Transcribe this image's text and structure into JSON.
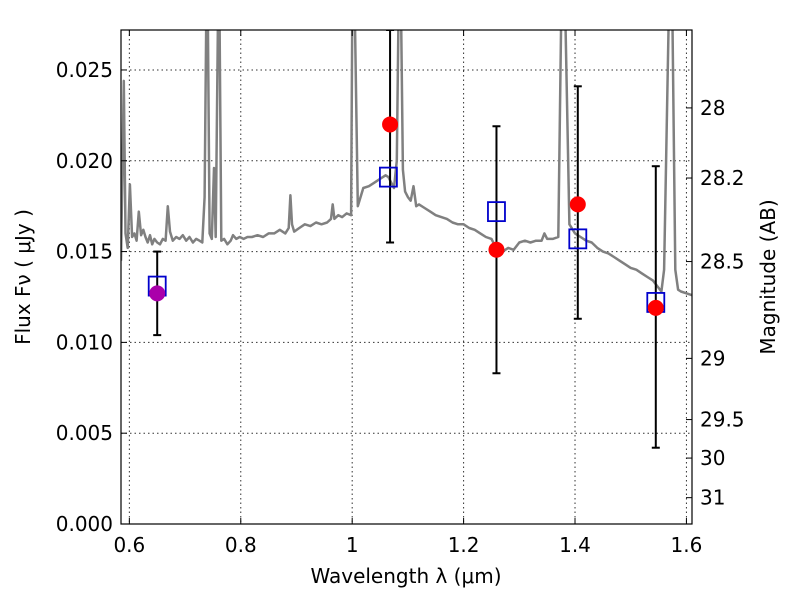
{
  "chart_data": {
    "type": "scatter",
    "title": "",
    "xlabel": "Wavelength  λ (μm)",
    "ylabel": "Flux  Fν  ( μJy )",
    "y2label": "Magnitude (AB)",
    "xlim": [
      0.585,
      1.61
    ],
    "ylim": [
      0.0,
      0.0272
    ],
    "grid": true,
    "x_ticks": [
      0.6,
      0.8,
      1.0,
      1.2,
      1.4,
      1.6
    ],
    "x_tick_labels": [
      "0.6",
      "0.8",
      "1",
      "1.2",
      "1.4",
      "1.6"
    ],
    "y_ticks": [
      0.0,
      0.005,
      0.01,
      0.015,
      0.02,
      0.025
    ],
    "y_tick_labels": [
      "0.000",
      "0.005",
      "0.010",
      "0.015",
      "0.020",
      "0.025"
    ],
    "mag_ticks": [
      {
        "label": "28",
        "flux": 0.02291
      },
      {
        "label": "28.2",
        "flux": 0.01905
      },
      {
        "label": "28.5",
        "flux": 0.01445
      },
      {
        "label": "29",
        "flux": 0.00912
      },
      {
        "label": "29.5",
        "flux": 0.00575
      },
      {
        "label": "30",
        "flux": 0.00363
      },
      {
        "label": "31",
        "flux": 0.00145
      }
    ],
    "colors": {
      "spectrum": "#808080",
      "model": "#0000cc",
      "observed": "#ff0000",
      "observed_first": "#aa00aa",
      "errorbar": "#000000"
    },
    "series": [
      {
        "type": "line",
        "points": [
          [
            0.585,
            0.0145
          ],
          [
            0.59,
            0.0244
          ],
          [
            0.593,
            0.016
          ],
          [
            0.597,
            0.0152
          ],
          [
            0.601,
            0.0187
          ],
          [
            0.605,
            0.0158
          ],
          [
            0.609,
            0.016
          ],
          [
            0.613,
            0.0156
          ],
          [
            0.617,
            0.0172
          ],
          [
            0.621,
            0.0159
          ],
          [
            0.625,
            0.0162
          ],
          [
            0.629,
            0.0158
          ],
          [
            0.633,
            0.0155
          ],
          [
            0.637,
            0.0159
          ],
          [
            0.641,
            0.0154
          ],
          [
            0.645,
            0.0157
          ],
          [
            0.65,
            0.0155
          ],
          [
            0.655,
            0.0154
          ],
          [
            0.66,
            0.0157
          ],
          [
            0.665,
            0.0156
          ],
          [
            0.669,
            0.0175
          ],
          [
            0.673,
            0.0161
          ],
          [
            0.678,
            0.0156
          ],
          [
            0.684,
            0.0158
          ],
          [
            0.69,
            0.0157
          ],
          [
            0.696,
            0.0159
          ],
          [
            0.702,
            0.0156
          ],
          [
            0.708,
            0.0158
          ],
          [
            0.714,
            0.0155
          ],
          [
            0.72,
            0.0157
          ],
          [
            0.726,
            0.0156
          ],
          [
            0.731,
            0.0155
          ],
          [
            0.735,
            0.018
          ],
          [
            0.738,
            0.0275
          ],
          [
            0.741,
            0.0275
          ],
          [
            0.744,
            0.016
          ],
          [
            0.748,
            0.0157
          ],
          [
            0.752,
            0.0196
          ],
          [
            0.755,
            0.0158
          ],
          [
            0.759,
            0.0275
          ],
          [
            0.762,
            0.0275
          ],
          [
            0.765,
            0.0156
          ],
          [
            0.77,
            0.0157
          ],
          [
            0.776,
            0.0154
          ],
          [
            0.782,
            0.0156
          ],
          [
            0.786,
            0.0159
          ],
          [
            0.792,
            0.0157
          ],
          [
            0.798,
            0.0158
          ],
          [
            0.805,
            0.0157
          ],
          [
            0.812,
            0.0158
          ],
          [
            0.82,
            0.0158
          ],
          [
            0.83,
            0.0159
          ],
          [
            0.84,
            0.0158
          ],
          [
            0.85,
            0.016
          ],
          [
            0.86,
            0.016
          ],
          [
            0.87,
            0.0162
          ],
          [
            0.88,
            0.016
          ],
          [
            0.886,
            0.0163
          ],
          [
            0.889,
            0.0181
          ],
          [
            0.892,
            0.0165
          ],
          [
            0.896,
            0.0161
          ],
          [
            0.905,
            0.0163
          ],
          [
            0.915,
            0.0165
          ],
          [
            0.925,
            0.0164
          ],
          [
            0.935,
            0.0166
          ],
          [
            0.945,
            0.0165
          ],
          [
            0.955,
            0.0166
          ],
          [
            0.962,
            0.0168
          ],
          [
            0.965,
            0.0176
          ],
          [
            0.968,
            0.0168
          ],
          [
            0.975,
            0.017
          ],
          [
            0.982,
            0.0169
          ],
          [
            0.99,
            0.0171
          ],
          [
            0.998,
            0.017
          ],
          [
            1.0,
            0.0275
          ],
          [
            1.005,
            0.0275
          ],
          [
            1.01,
            0.0175
          ],
          [
            1.02,
            0.0185
          ],
          [
            1.03,
            0.0186
          ],
          [
            1.04,
            0.0188
          ],
          [
            1.05,
            0.019
          ],
          [
            1.06,
            0.0192
          ],
          [
            1.065,
            0.0191
          ],
          [
            1.07,
            0.0188
          ],
          [
            1.075,
            0.0185
          ],
          [
            1.08,
            0.02
          ],
          [
            1.083,
            0.0275
          ],
          [
            1.088,
            0.0275
          ],
          [
            1.091,
            0.0195
          ],
          [
            1.095,
            0.0183
          ],
          [
            1.1,
            0.018
          ],
          [
            1.105,
            0.0178
          ],
          [
            1.11,
            0.0186
          ],
          [
            1.115,
            0.0175
          ],
          [
            1.12,
            0.0176
          ],
          [
            1.13,
            0.0174
          ],
          [
            1.14,
            0.0172
          ],
          [
            1.15,
            0.017
          ],
          [
            1.16,
            0.0169
          ],
          [
            1.17,
            0.0168
          ],
          [
            1.18,
            0.0166
          ],
          [
            1.19,
            0.0165
          ],
          [
            1.2,
            0.0165
          ],
          [
            1.21,
            0.0163
          ],
          [
            1.22,
            0.0162
          ],
          [
            1.23,
            0.016
          ],
          [
            1.24,
            0.0158
          ],
          [
            1.25,
            0.0157
          ],
          [
            1.255,
            0.0154
          ],
          [
            1.26,
            0.0152
          ],
          [
            1.265,
            0.0153
          ],
          [
            1.27,
            0.015
          ],
          [
            1.28,
            0.0152
          ],
          [
            1.29,
            0.0151
          ],
          [
            1.3,
            0.0155
          ],
          [
            1.31,
            0.0156
          ],
          [
            1.32,
            0.0155
          ],
          [
            1.33,
            0.0156
          ],
          [
            1.34,
            0.0156
          ],
          [
            1.345,
            0.016
          ],
          [
            1.35,
            0.0157
          ],
          [
            1.36,
            0.0157
          ],
          [
            1.37,
            0.0158
          ],
          [
            1.375,
            0.0275
          ],
          [
            1.383,
            0.0275
          ],
          [
            1.39,
            0.0165
          ],
          [
            1.4,
            0.016
          ],
          [
            1.41,
            0.0158
          ],
          [
            1.42,
            0.0156
          ],
          [
            1.43,
            0.0155
          ],
          [
            1.44,
            0.0152
          ],
          [
            1.45,
            0.015
          ],
          [
            1.46,
            0.0149
          ],
          [
            1.47,
            0.0147
          ],
          [
            1.48,
            0.0145
          ],
          [
            1.49,
            0.0143
          ],
          [
            1.5,
            0.0141
          ],
          [
            1.51,
            0.014
          ],
          [
            1.52,
            0.0138
          ],
          [
            1.53,
            0.0136
          ],
          [
            1.54,
            0.0134
          ],
          [
            1.55,
            0.013
          ],
          [
            1.555,
            0.0128
          ],
          [
            1.56,
            0.014
          ],
          [
            1.568,
            0.0275
          ],
          [
            1.575,
            0.0275
          ],
          [
            1.58,
            0.014
          ],
          [
            1.585,
            0.0129
          ],
          [
            1.59,
            0.0128
          ],
          [
            1.6,
            0.0127
          ],
          [
            1.61,
            0.0126
          ]
        ]
      },
      {
        "type": "scatter",
        "marker": "open-square",
        "x": [
          0.65,
          1.065,
          1.259,
          1.405,
          1.545
        ],
        "y": [
          0.0131,
          0.0191,
          0.0172,
          0.0157,
          0.0122
        ]
      },
      {
        "type": "scatter",
        "marker": "filled-circle",
        "x": [
          0.65,
          1.068,
          1.259,
          1.405,
          1.545
        ],
        "y": [
          0.0127,
          0.022,
          0.0151,
          0.0176,
          0.0119
        ],
        "yerr_low": [
          0.0104,
          0.0155,
          0.0083,
          0.0113,
          0.0042
        ],
        "yerr_high": [
          0.015,
          0.0272,
          0.0219,
          0.0241,
          0.0197
        ]
      }
    ]
  }
}
